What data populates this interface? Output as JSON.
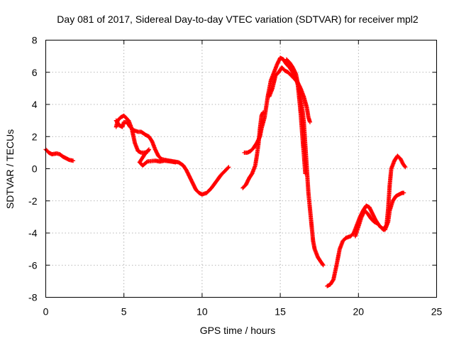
{
  "chart_data": {
    "type": "scatter",
    "title": "Day 081 of 2017, Sidereal Day-to-day VTEC variation (SDTVAR) for receiver mpl2",
    "xlabel": "GPS time / hours",
    "ylabel": "SDTVAR / TECUs",
    "xlim": [
      0,
      25
    ],
    "ylim": [
      -8,
      8
    ],
    "xticks": [
      0,
      5,
      10,
      15,
      20,
      25
    ],
    "xtick_labels": [
      "0",
      "5",
      "10",
      "15",
      "20",
      "25"
    ],
    "yticks": [
      -8,
      -6,
      -4,
      -2,
      0,
      2,
      4,
      6,
      8
    ],
    "ytick_labels": [
      "-8",
      "-6",
      "-4",
      "-2",
      "0",
      "2",
      "4",
      "6",
      "8"
    ],
    "grid": true,
    "marker": "+",
    "color": "#ff0000",
    "series": [
      {
        "name": "segment-1",
        "points": [
          [
            0.0,
            1.2
          ],
          [
            0.2,
            1.0
          ],
          [
            0.4,
            0.9
          ],
          [
            0.7,
            0.95
          ],
          [
            0.9,
            0.9
          ],
          [
            1.1,
            0.75
          ],
          [
            1.3,
            0.65
          ],
          [
            1.5,
            0.55
          ],
          [
            1.75,
            0.5
          ]
        ]
      },
      {
        "name": "segment-2",
        "points": [
          [
            4.5,
            3.0
          ],
          [
            4.7,
            2.7
          ],
          [
            4.9,
            2.6
          ],
          [
            5.0,
            2.9
          ],
          [
            5.2,
            2.9
          ],
          [
            5.4,
            2.6
          ],
          [
            5.6,
            2.4
          ],
          [
            5.9,
            2.3
          ],
          [
            6.1,
            2.3
          ],
          [
            6.4,
            2.1
          ],
          [
            6.6,
            2.0
          ],
          [
            6.8,
            1.7
          ],
          [
            7.0,
            1.2
          ],
          [
            7.2,
            0.8
          ],
          [
            7.4,
            0.6
          ],
          [
            7.6,
            0.55
          ],
          [
            7.9,
            0.5
          ],
          [
            8.2,
            0.45
          ],
          [
            8.5,
            0.4
          ],
          [
            8.8,
            0.2
          ],
          [
            9.0,
            -0.1
          ],
          [
            9.2,
            -0.5
          ],
          [
            9.4,
            -0.9
          ],
          [
            9.6,
            -1.3
          ],
          [
            9.8,
            -1.5
          ],
          [
            10.0,
            -1.6
          ],
          [
            10.3,
            -1.5
          ],
          [
            10.6,
            -1.2
          ],
          [
            10.9,
            -0.8
          ],
          [
            11.2,
            -0.4
          ],
          [
            11.5,
            -0.1
          ],
          [
            11.7,
            0.1
          ]
        ]
      },
      {
        "name": "segment-3",
        "points": [
          [
            4.5,
            2.6
          ],
          [
            4.6,
            3.0
          ],
          [
            4.8,
            3.2
          ],
          [
            5.0,
            3.3
          ],
          [
            5.3,
            3.0
          ],
          [
            5.5,
            2.5
          ],
          [
            5.7,
            1.6
          ],
          [
            5.9,
            1.1
          ],
          [
            6.1,
            1.0
          ],
          [
            6.3,
            1.0
          ],
          [
            6.5,
            1.05
          ],
          [
            6.6,
            1.2
          ],
          [
            6.4,
            1.0
          ],
          [
            6.0,
            0.4
          ],
          [
            6.2,
            0.2
          ],
          [
            6.5,
            0.45
          ],
          [
            7.0,
            0.5
          ],
          [
            7.3,
            0.45
          ],
          [
            7.6,
            0.5
          ],
          [
            8.0,
            0.45
          ],
          [
            8.3,
            0.4
          ]
        ]
      },
      {
        "name": "segment-4",
        "points": [
          [
            12.6,
            -1.2
          ],
          [
            12.8,
            -1.0
          ],
          [
            13.0,
            -0.6
          ],
          [
            13.2,
            -0.3
          ],
          [
            13.4,
            0.2
          ],
          [
            13.5,
            0.8
          ],
          [
            13.6,
            1.5
          ],
          [
            13.7,
            2.5
          ],
          [
            13.8,
            3.3
          ],
          [
            13.9,
            3.5
          ]
        ]
      },
      {
        "name": "segment-5",
        "points": [
          [
            12.7,
            1.0
          ],
          [
            12.9,
            1.0
          ],
          [
            13.1,
            1.1
          ],
          [
            13.3,
            1.3
          ],
          [
            13.5,
            1.6
          ],
          [
            13.7,
            2.0
          ],
          [
            13.8,
            2.5
          ],
          [
            14.0,
            3.2
          ],
          [
            14.2,
            4.5
          ],
          [
            14.4,
            5.5
          ],
          [
            14.6,
            6.0
          ],
          [
            14.8,
            6.5
          ],
          [
            15.0,
            6.9
          ],
          [
            15.2,
            6.8
          ],
          [
            15.4,
            6.5
          ],
          [
            15.6,
            6.3
          ],
          [
            15.8,
            6.0
          ],
          [
            16.0,
            5.6
          ],
          [
            16.2,
            5.0
          ],
          [
            16.35,
            4.2
          ],
          [
            16.5,
            3.0
          ],
          [
            16.6,
            1.5
          ],
          [
            16.7,
            0.0
          ],
          [
            16.8,
            -1.5
          ],
          [
            16.9,
            -2.5
          ],
          [
            17.0,
            -3.5
          ],
          [
            17.1,
            -4.5
          ],
          [
            17.2,
            -5.0
          ],
          [
            17.4,
            -5.5
          ],
          [
            17.6,
            -5.8
          ],
          [
            17.75,
            -6.0
          ]
        ]
      },
      {
        "name": "segment-6",
        "points": [
          [
            14.3,
            4.5
          ],
          [
            14.5,
            5.0
          ],
          [
            14.7,
            5.8
          ],
          [
            14.9,
            6.0
          ],
          [
            15.1,
            6.3
          ],
          [
            15.3,
            6.1
          ],
          [
            15.5,
            6.0
          ],
          [
            15.7,
            5.8
          ],
          [
            15.9,
            5.6
          ],
          [
            16.1,
            5.4
          ],
          [
            16.3,
            5.0
          ],
          [
            16.5,
            4.5
          ],
          [
            16.7,
            3.8
          ],
          [
            16.8,
            3.2
          ],
          [
            16.9,
            2.9
          ]
        ]
      },
      {
        "name": "segment-7",
        "points": [
          [
            15.4,
            6.8
          ],
          [
            15.6,
            6.6
          ],
          [
            15.8,
            6.3
          ],
          [
            16.0,
            5.9
          ],
          [
            16.1,
            5.4
          ],
          [
            16.2,
            4.5
          ],
          [
            16.3,
            3.5
          ],
          [
            16.4,
            2.2
          ],
          [
            16.5,
            1.0
          ],
          [
            16.6,
            -0.3
          ]
        ]
      },
      {
        "name": "segment-8",
        "points": [
          [
            18.0,
            -7.3
          ],
          [
            18.2,
            -7.2
          ],
          [
            18.4,
            -6.9
          ],
          [
            18.6,
            -6.0
          ],
          [
            18.8,
            -5.0
          ],
          [
            19.0,
            -4.5
          ],
          [
            19.2,
            -4.3
          ],
          [
            19.5,
            -4.2
          ],
          [
            19.7,
            -4.0
          ],
          [
            19.9,
            -3.5
          ],
          [
            20.1,
            -3.0
          ],
          [
            20.3,
            -2.6
          ],
          [
            20.5,
            -2.3
          ],
          [
            20.7,
            -2.4
          ],
          [
            20.9,
            -2.8
          ],
          [
            21.1,
            -3.2
          ],
          [
            21.3,
            -3.5
          ],
          [
            21.5,
            -3.7
          ],
          [
            21.7,
            -3.8
          ],
          [
            21.9,
            -3.3
          ],
          [
            22.0,
            -2.6
          ],
          [
            22.2,
            -2.0
          ],
          [
            22.4,
            -1.7
          ],
          [
            22.6,
            -1.6
          ],
          [
            22.8,
            -1.5
          ],
          [
            22.9,
            -1.5
          ]
        ]
      },
      {
        "name": "segment-9",
        "points": [
          [
            19.8,
            -4.2
          ],
          [
            20.0,
            -3.6
          ],
          [
            20.2,
            -3.0
          ],
          [
            20.4,
            -2.6
          ],
          [
            20.6,
            -2.8
          ],
          [
            20.8,
            -3.1
          ],
          [
            21.0,
            -3.3
          ],
          [
            21.2,
            -3.4
          ],
          [
            21.4,
            -3.6
          ],
          [
            21.6,
            -3.8
          ],
          [
            21.8,
            -3.5
          ],
          [
            21.9,
            -2.5
          ],
          [
            22.0,
            -1.0
          ],
          [
            22.1,
            0.0
          ],
          [
            22.3,
            0.5
          ],
          [
            22.5,
            0.8
          ],
          [
            22.7,
            0.6
          ],
          [
            22.85,
            0.3
          ],
          [
            23.0,
            0.1
          ]
        ]
      }
    ]
  }
}
